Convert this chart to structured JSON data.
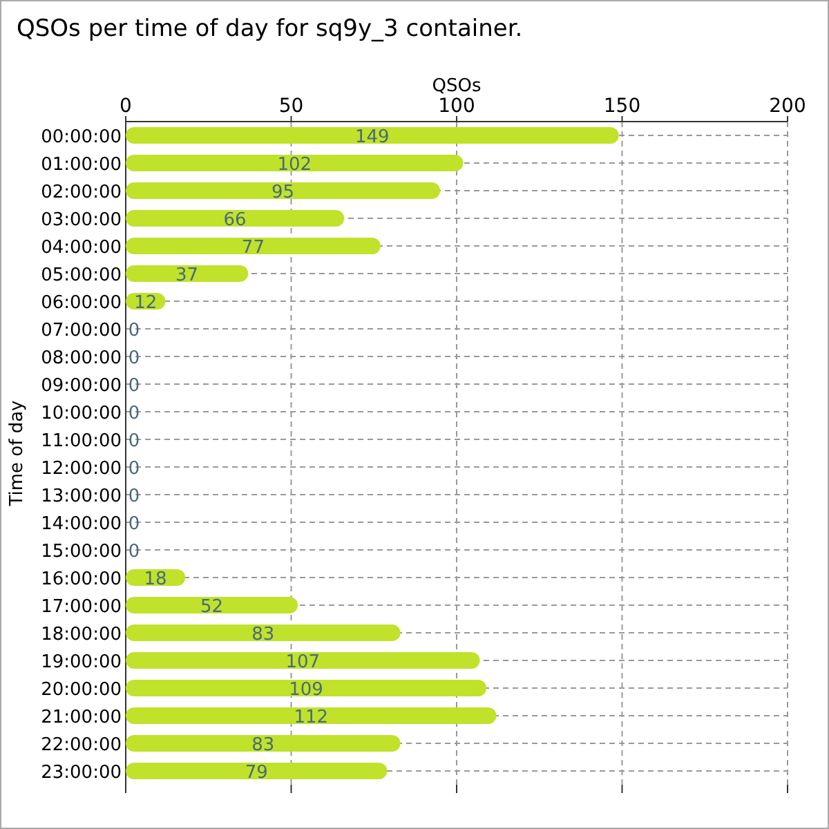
{
  "chart_data": {
    "type": "bar",
    "orientation": "horizontal",
    "title": "QSOs per time of day for sq9y_3 container.",
    "xlabel": "QSOs",
    "ylabel": "Time of day",
    "categories": [
      "00:00:00",
      "01:00:00",
      "02:00:00",
      "03:00:00",
      "04:00:00",
      "05:00:00",
      "06:00:00",
      "07:00:00",
      "08:00:00",
      "09:00:00",
      "10:00:00",
      "11:00:00",
      "12:00:00",
      "13:00:00",
      "14:00:00",
      "15:00:00",
      "16:00:00",
      "17:00:00",
      "18:00:00",
      "19:00:00",
      "20:00:00",
      "21:00:00",
      "22:00:00",
      "23:00:00"
    ],
    "values": [
      149,
      102,
      95,
      66,
      77,
      37,
      12,
      0,
      0,
      0,
      0,
      0,
      0,
      0,
      0,
      0,
      18,
      52,
      83,
      107,
      109,
      112,
      83,
      79
    ],
    "color": "#c0e22a",
    "xlim": [
      0,
      200
    ],
    "xticks": [
      0,
      50,
      100,
      150,
      200
    ],
    "grid": true,
    "data_labels": true
  }
}
